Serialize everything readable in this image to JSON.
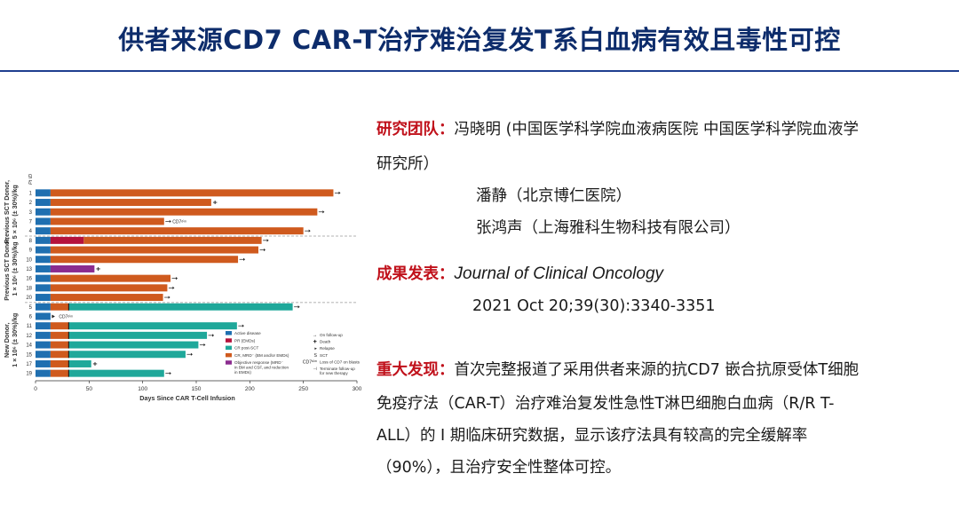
{
  "title": "供者来源CD7 CAR-T治疗难治复发T系白血病有效且毒性可控",
  "team": {
    "label": "研究团队：",
    "line1": "冯晓明 (中国医学科学院血液病医院 中国医学科学院血液学",
    "line2": "研究所）",
    "line3": "潘静（北京博仁医院）",
    "line4": "张鸿声（上海雅科生物科技有限公司）"
  },
  "publication": {
    "label": "成果发表：",
    "journal": "Journal of Clinical Oncology",
    "citation": "2021 Oct 20;39(30):3340-3351"
  },
  "findings": {
    "label": "重大发现：",
    "line1": "首次完整报道了采用供者来源的抗CD7 嵌合抗原受体T细胞",
    "line2": "免疫疗法（CAR-T）治疗难治复发性急性T淋巴细胞白血病（R/R T-",
    "line3": "ALL）的 I 期临床研究数据，显示该疗法具有较高的完全缓解率",
    "line4": "（90%），且治疗安全性整体可控。"
  },
  "chart_data": {
    "type": "bar",
    "orientation": "horizontal",
    "xlabel": "Days Since CAR T-Cell Infusion",
    "ylabel": "Pt ID",
    "xlim": [
      0,
      300
    ],
    "xticks": [
      0,
      50,
      100,
      150,
      200,
      250,
      300
    ],
    "groups": [
      {
        "label_line1": "Previous SCT Donor,",
        "label_line2": "5 × 10⁶ (± 30%)/kg",
        "patients": [
          "1",
          "2",
          "3",
          "7",
          "4"
        ]
      },
      {
        "label_line1": "Previous SCT Donor,",
        "label_line2": "1 × 10⁶ (± 30%)/kg",
        "patients": [
          "8",
          "9",
          "10",
          "13",
          "16",
          "18",
          "20"
        ]
      },
      {
        "label_line1": "New Donor,",
        "label_line2": "1 × 10⁶ (± 30%)/kg",
        "patients": [
          "5",
          "6",
          "11",
          "12",
          "14",
          "15",
          "17",
          "19"
        ]
      }
    ],
    "legend": [
      {
        "name": "Active disease",
        "color": "#1f6fb0"
      },
      {
        "name": "PR (EMDs)",
        "color": "#b5123b"
      },
      {
        "name": "CR post-SCT",
        "color": "#1fa89a"
      },
      {
        "name": "CR, MRD⁻ (BM and/or EMDs)",
        "color": "#cf5a1e"
      },
      {
        "name": "Objective response (MRD⁻",
        "name_line2": "in BM and CSF, and reduction",
        "name_line3": "in EMDs)",
        "color": "#8b2c8f"
      }
    ],
    "symbol_legend": [
      {
        "symbol": "→",
        "name": "On follow-up"
      },
      {
        "symbol": "✚",
        "name": "Death"
      },
      {
        "symbol": "▸",
        "name": "Relapse"
      },
      {
        "symbol": "S",
        "name": "SCT"
      },
      {
        "symbol": "CD7ᵈⁱᵐ",
        "name": "Loss of CD7 on blasts"
      },
      {
        "symbol": "⊣",
        "name": "Terminate follow-up",
        "name_line2": "for new therapy"
      }
    ],
    "annotation_cd7": "CD7ᵈⁱᵐ",
    "rows": [
      {
        "id": "1",
        "segments": [
          {
            "color": "#1f6fb0",
            "start": 0,
            "end": 14
          },
          {
            "color": "#cf5a1e",
            "start": 14,
            "end": 278
          }
        ],
        "end_marker": "arrow"
      },
      {
        "id": "2",
        "segments": [
          {
            "color": "#1f6fb0",
            "start": 0,
            "end": 14
          },
          {
            "color": "#cf5a1e",
            "start": 14,
            "end": 164
          }
        ],
        "end_marker": "cross"
      },
      {
        "id": "3",
        "segments": [
          {
            "color": "#1f6fb0",
            "start": 0,
            "end": 14
          },
          {
            "color": "#cf5a1e",
            "start": 14,
            "end": 263
          }
        ],
        "end_marker": "arrow"
      },
      {
        "id": "7",
        "segments": [
          {
            "color": "#1f6fb0",
            "start": 0,
            "end": 14
          },
          {
            "color": "#cf5a1e",
            "start": 14,
            "end": 120
          }
        ],
        "end_marker": "arrow",
        "note": "CD7ᵈⁱᵐ"
      },
      {
        "id": "4",
        "segments": [
          {
            "color": "#1f6fb0",
            "start": 0,
            "end": 14
          },
          {
            "color": "#cf5a1e",
            "start": 14,
            "end": 250
          }
        ],
        "end_marker": "arrow"
      },
      {
        "id": "8",
        "segments": [
          {
            "color": "#1f6fb0",
            "start": 0,
            "end": 14
          },
          {
            "color": "#b5123b",
            "start": 14,
            "end": 45
          },
          {
            "color": "#cf5a1e",
            "start": 45,
            "end": 211
          }
        ],
        "end_marker": "arrow"
      },
      {
        "id": "9",
        "segments": [
          {
            "color": "#1f6fb0",
            "start": 0,
            "end": 14
          },
          {
            "color": "#cf5a1e",
            "start": 14,
            "end": 208
          }
        ],
        "end_marker": "arrow"
      },
      {
        "id": "10",
        "segments": [
          {
            "color": "#1f6fb0",
            "start": 0,
            "end": 14
          },
          {
            "color": "#cf5a1e",
            "start": 14,
            "end": 189
          }
        ],
        "end_marker": "arrow"
      },
      {
        "id": "13",
        "segments": [
          {
            "color": "#1f6fb0",
            "start": 0,
            "end": 14
          },
          {
            "color": "#8b2c8f",
            "start": 14,
            "end": 55
          }
        ],
        "end_marker": "cross"
      },
      {
        "id": "16",
        "segments": [
          {
            "color": "#1f6fb0",
            "start": 0,
            "end": 14
          },
          {
            "color": "#cf5a1e",
            "start": 14,
            "end": 126
          }
        ],
        "end_marker": "arrow"
      },
      {
        "id": "18",
        "segments": [
          {
            "color": "#1f6fb0",
            "start": 0,
            "end": 14
          },
          {
            "color": "#cf5a1e",
            "start": 14,
            "end": 123
          }
        ],
        "end_marker": "arrow"
      },
      {
        "id": "20",
        "segments": [
          {
            "color": "#1f6fb0",
            "start": 0,
            "end": 14
          },
          {
            "color": "#cf5a1e",
            "start": 14,
            "end": 119
          }
        ],
        "end_marker": "arrow"
      },
      {
        "id": "5",
        "segments": [
          {
            "color": "#1f6fb0",
            "start": 0,
            "end": 14
          },
          {
            "color": "#cf5a1e",
            "start": 14,
            "end": 31
          },
          {
            "color": "#1fa89a",
            "start": 31,
            "end": 240
          }
        ],
        "end_marker": "arrow",
        "sct_at": 31
      },
      {
        "id": "6",
        "segments": [
          {
            "color": "#1f6fb0",
            "start": 0,
            "end": 14
          }
        ],
        "end_marker": "relapse",
        "note": "CD7ᵈⁱᵐ"
      },
      {
        "id": "11",
        "segments": [
          {
            "color": "#1f6fb0",
            "start": 0,
            "end": 14
          },
          {
            "color": "#cf5a1e",
            "start": 14,
            "end": 31
          },
          {
            "color": "#1fa89a",
            "start": 31,
            "end": 188
          }
        ],
        "end_marker": "arrow",
        "sct_at": 31
      },
      {
        "id": "12",
        "segments": [
          {
            "color": "#1f6fb0",
            "start": 0,
            "end": 14
          },
          {
            "color": "#cf5a1e",
            "start": 14,
            "end": 31
          },
          {
            "color": "#1fa89a",
            "start": 31,
            "end": 160
          }
        ],
        "end_marker": "arrow",
        "sct_at": 31
      },
      {
        "id": "14",
        "segments": [
          {
            "color": "#1f6fb0",
            "start": 0,
            "end": 14
          },
          {
            "color": "#cf5a1e",
            "start": 14,
            "end": 31
          },
          {
            "color": "#1fa89a",
            "start": 31,
            "end": 152
          }
        ],
        "end_marker": "arrow",
        "sct_at": 31
      },
      {
        "id": "15",
        "segments": [
          {
            "color": "#1f6fb0",
            "start": 0,
            "end": 14
          },
          {
            "color": "#cf5a1e",
            "start": 14,
            "end": 31
          },
          {
            "color": "#1fa89a",
            "start": 31,
            "end": 140
          }
        ],
        "end_marker": "arrow",
        "sct_at": 31
      },
      {
        "id": "17",
        "segments": [
          {
            "color": "#1f6fb0",
            "start": 0,
            "end": 14
          },
          {
            "color": "#cf5a1e",
            "start": 14,
            "end": 31
          },
          {
            "color": "#1fa89a",
            "start": 31,
            "end": 52
          }
        ],
        "end_marker": "cross",
        "sct_at": 31
      },
      {
        "id": "19",
        "segments": [
          {
            "color": "#1f6fb0",
            "start": 0,
            "end": 14
          },
          {
            "color": "#cf5a1e",
            "start": 14,
            "end": 31
          },
          {
            "color": "#1fa89a",
            "start": 31,
            "end": 120
          }
        ],
        "end_marker": "arrow",
        "sct_at": 31
      }
    ]
  }
}
